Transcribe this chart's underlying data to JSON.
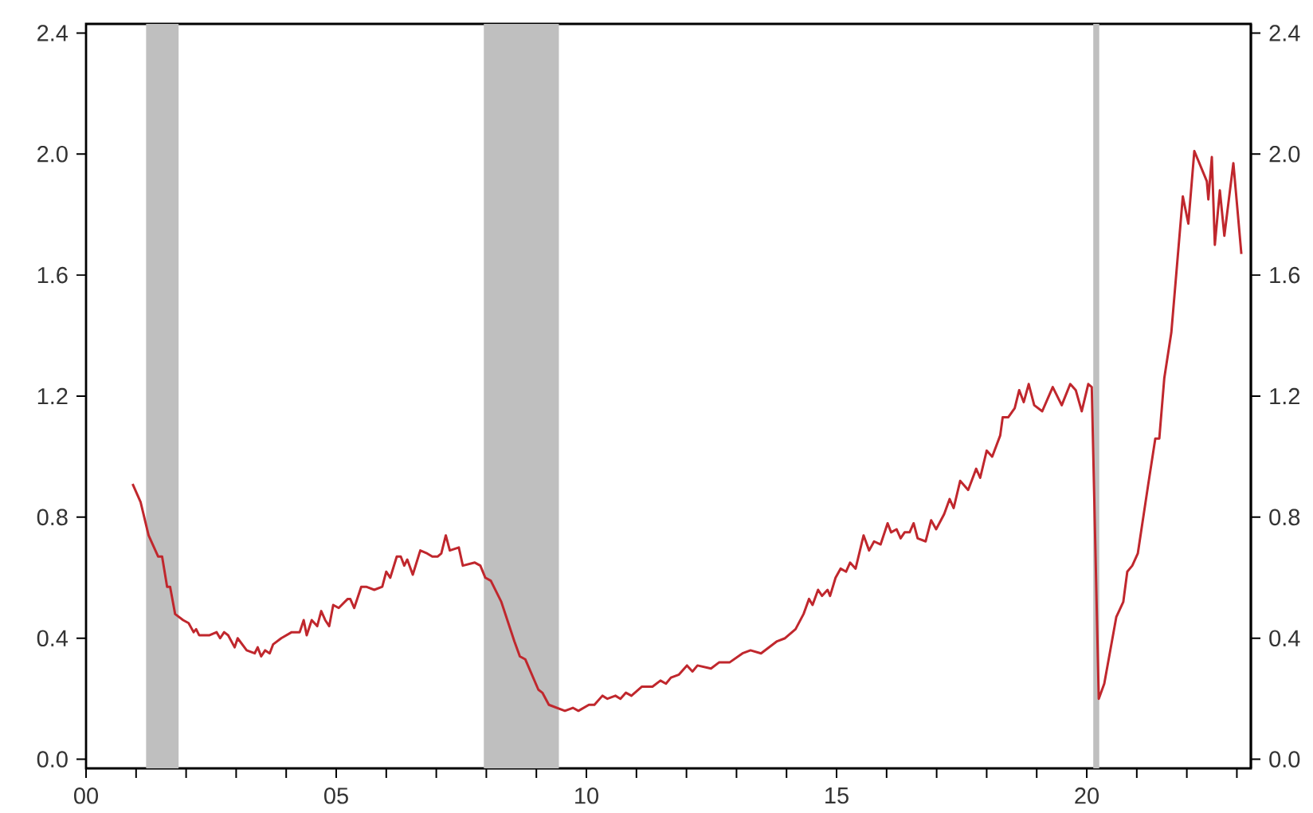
{
  "chart_data": {
    "type": "line",
    "xlim": [
      0,
      23.28
    ],
    "ylim": [
      -0.03,
      2.43
    ],
    "y2lim": [
      -0.03,
      2.43
    ],
    "xticks": [
      {
        "value": 0,
        "label": "00"
      },
      {
        "value": 5,
        "label": "05"
      },
      {
        "value": 10,
        "label": "10"
      },
      {
        "value": 15,
        "label": "15"
      },
      {
        "value": 20,
        "label": "20"
      },
      {
        "value": 1,
        "label": null
      },
      {
        "value": 2,
        "label": null
      },
      {
        "value": 3,
        "label": null
      },
      {
        "value": 4,
        "label": null
      },
      {
        "value": 6,
        "label": null
      },
      {
        "value": 7,
        "label": null
      },
      {
        "value": 8,
        "label": null
      },
      {
        "value": 9,
        "label": null
      },
      {
        "value": 11,
        "label": null
      },
      {
        "value": 12,
        "label": null
      },
      {
        "value": 13,
        "label": null
      },
      {
        "value": 14,
        "label": null
      },
      {
        "value": 16,
        "label": null
      },
      {
        "value": 17,
        "label": null
      },
      {
        "value": 18,
        "label": null
      },
      {
        "value": 19,
        "label": null
      },
      {
        "value": 21,
        "label": null
      },
      {
        "value": 22,
        "label": null
      },
      {
        "value": 23,
        "label": null
      }
    ],
    "yticks": [
      {
        "value": 0,
        "label": "0.0"
      },
      {
        "value": 0.4,
        "label": "0.4"
      },
      {
        "value": 0.8,
        "label": "0.8"
      },
      {
        "value": 1.2,
        "label": "1.2"
      },
      {
        "value": 1.6,
        "label": "1.6"
      },
      {
        "value": 2.0,
        "label": "2.0"
      },
      {
        "value": 2.4,
        "label": "2.4"
      }
    ],
    "y2ticks": [
      {
        "value": 0,
        "label": "0.0"
      },
      {
        "value": 0.4,
        "label": "0.4"
      },
      {
        "value": 0.8,
        "label": "0.8"
      },
      {
        "value": 1.2,
        "label": "1.2"
      },
      {
        "value": 1.6,
        "label": "1.6"
      },
      {
        "value": 2.0,
        "label": "2.0"
      },
      {
        "value": 2.4,
        "label": "2.4"
      }
    ],
    "line_style": "solid",
    "marker": "none",
    "bands": [
      {
        "axis": "x",
        "from": 1.2,
        "to": 1.85,
        "color": "#bfbfbf"
      },
      {
        "axis": "x",
        "from": 7.95,
        "to": 9.45,
        "color": "#bfbfbf"
      },
      {
        "axis": "x",
        "from": 20.13,
        "to": 20.25,
        "color": "#bfbfbf"
      }
    ],
    "series": [
      {
        "color": "#c0272d",
        "x": [
          0.93,
          1.09,
          1.25,
          1.44,
          1.52,
          1.62,
          1.68,
          1.78,
          1.94,
          2.05,
          2.15,
          2.2,
          2.26,
          2.47,
          2.61,
          2.68,
          2.76,
          2.84,
          2.97,
          3.03,
          3.21,
          3.37,
          3.43,
          3.5,
          3.58,
          3.67,
          3.74,
          3.9,
          4.11,
          4.27,
          4.35,
          4.41,
          4.51,
          4.62,
          4.7,
          4.78,
          4.86,
          4.94,
          5.05,
          5.23,
          5.28,
          5.36,
          5.5,
          5.6,
          5.76,
          5.92,
          6.0,
          6.08,
          6.21,
          6.29,
          6.36,
          6.42,
          6.53,
          6.68,
          6.82,
          6.92,
          7.03,
          7.1,
          7.19,
          7.27,
          7.45,
          7.53,
          7.77,
          7.88,
          7.98,
          8.09,
          8.3,
          8.56,
          8.67,
          8.78,
          9.04,
          9.12,
          9.25,
          9.41,
          9.57,
          9.73,
          9.84,
          10.05,
          10.16,
          10.32,
          10.42,
          10.58,
          10.68,
          10.79,
          10.9,
          11.11,
          11.32,
          11.48,
          11.59,
          11.69,
          11.85,
          12.01,
          12.12,
          12.22,
          12.49,
          12.65,
          12.86,
          13.12,
          13.28,
          13.49,
          13.81,
          13.97,
          14.18,
          14.34,
          14.45,
          14.52,
          14.63,
          14.71,
          14.82,
          14.87,
          14.98,
          15.08,
          15.19,
          15.27,
          15.38,
          15.54,
          15.65,
          15.75,
          15.88,
          16.02,
          16.09,
          16.2,
          16.28,
          16.36,
          16.46,
          16.54,
          16.62,
          16.78,
          16.89,
          16.99,
          17.15,
          17.26,
          17.34,
          17.47,
          17.63,
          17.79,
          17.87,
          18.0,
          18.11,
          18.27,
          18.32,
          18.43,
          18.56,
          18.65,
          18.74,
          18.84,
          18.95,
          19.11,
          19.32,
          19.5,
          19.67,
          19.78,
          19.9,
          20.03,
          20.1,
          20.24,
          20.35,
          20.59,
          20.73,
          20.81,
          20.91,
          21.02,
          21.23,
          21.37,
          21.45,
          21.55,
          21.69,
          21.92,
          22.03,
          22.15,
          22.4,
          22.43,
          22.5,
          22.56,
          22.66,
          22.75,
          22.93,
          23.09
        ],
        "values": [
          0.91,
          0.85,
          0.74,
          0.67,
          0.67,
          0.57,
          0.57,
          0.48,
          0.46,
          0.45,
          0.42,
          0.43,
          0.41,
          0.41,
          0.42,
          0.4,
          0.42,
          0.41,
          0.37,
          0.4,
          0.36,
          0.35,
          0.37,
          0.34,
          0.36,
          0.35,
          0.38,
          0.4,
          0.42,
          0.42,
          0.46,
          0.41,
          0.46,
          0.44,
          0.49,
          0.46,
          0.44,
          0.51,
          0.5,
          0.53,
          0.53,
          0.5,
          0.57,
          0.57,
          0.56,
          0.57,
          0.62,
          0.6,
          0.67,
          0.67,
          0.64,
          0.66,
          0.61,
          0.69,
          0.68,
          0.67,
          0.67,
          0.68,
          0.74,
          0.69,
          0.7,
          0.64,
          0.65,
          0.64,
          0.6,
          0.59,
          0.52,
          0.39,
          0.34,
          0.33,
          0.23,
          0.22,
          0.18,
          0.17,
          0.16,
          0.17,
          0.16,
          0.18,
          0.18,
          0.21,
          0.2,
          0.21,
          0.2,
          0.22,
          0.21,
          0.24,
          0.24,
          0.26,
          0.25,
          0.27,
          0.28,
          0.31,
          0.29,
          0.31,
          0.3,
          0.32,
          0.32,
          0.35,
          0.36,
          0.35,
          0.39,
          0.4,
          0.43,
          0.48,
          0.53,
          0.51,
          0.56,
          0.54,
          0.56,
          0.54,
          0.6,
          0.63,
          0.62,
          0.65,
          0.63,
          0.74,
          0.69,
          0.72,
          0.71,
          0.78,
          0.75,
          0.76,
          0.73,
          0.75,
          0.75,
          0.78,
          0.73,
          0.72,
          0.79,
          0.76,
          0.81,
          0.86,
          0.83,
          0.92,
          0.89,
          0.96,
          0.93,
          1.02,
          1.0,
          1.07,
          1.13,
          1.13,
          1.16,
          1.22,
          1.18,
          1.24,
          1.17,
          1.15,
          1.23,
          1.17,
          1.24,
          1.22,
          1.15,
          1.24,
          1.23,
          0.2,
          0.25,
          0.47,
          0.52,
          0.62,
          0.64,
          0.68,
          0.91,
          1.06,
          1.06,
          1.26,
          1.41,
          1.86,
          1.77,
          2.01,
          1.91,
          1.85,
          1.99,
          1.7,
          1.88,
          1.73,
          1.97,
          1.67
        ]
      }
    ]
  }
}
